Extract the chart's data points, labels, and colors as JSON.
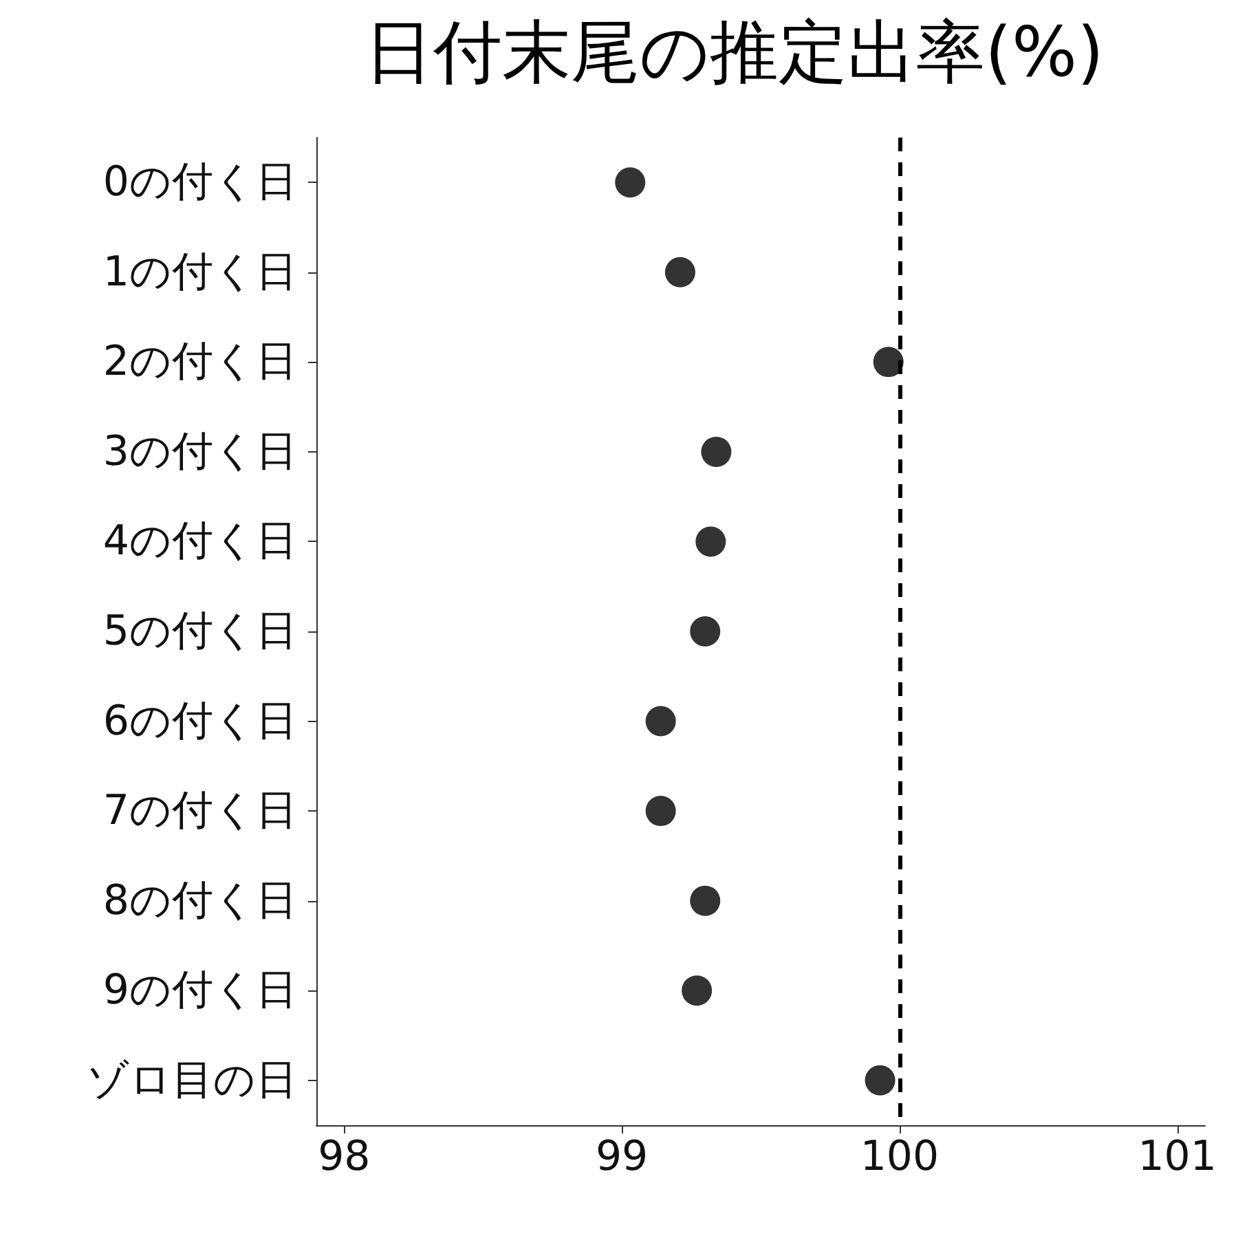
{
  "chart_data": {
    "type": "scatter",
    "title": "日付末尾の推定出率(%)",
    "orientation": "horizontal",
    "categories": [
      "0の付く日",
      "1の付く日",
      "2の付く日",
      "3の付く日",
      "4の付く日",
      "5の付く日",
      "6の付く日",
      "7の付く日",
      "8の付く日",
      "9の付く日",
      "ゾロ目の日"
    ],
    "values": [
      99.03,
      99.21,
      99.96,
      99.34,
      99.32,
      99.3,
      99.14,
      99.14,
      99.3,
      99.27,
      99.93
    ],
    "color": "#000000",
    "marker": "circle",
    "grid": false,
    "xlim": [
      97.9,
      101.1
    ],
    "xticks": [
      98,
      99,
      100,
      101
    ],
    "ref_lines": [
      {
        "axis": "x",
        "value": 100,
        "line_style": "dashed",
        "color": "#000000"
      }
    ]
  }
}
